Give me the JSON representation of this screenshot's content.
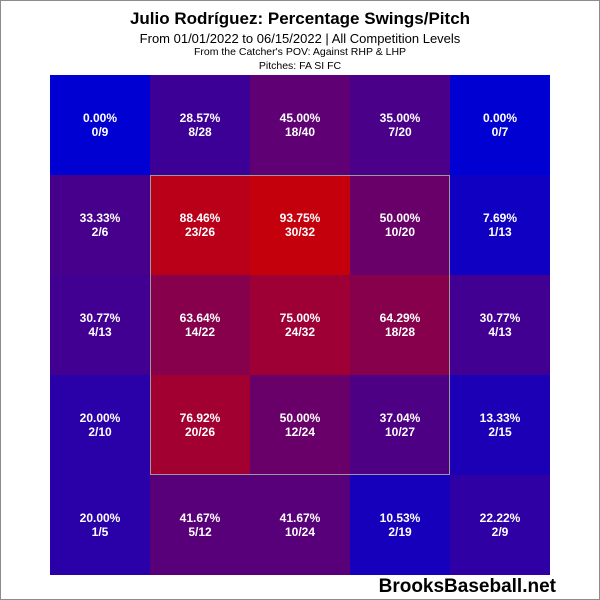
{
  "header": {
    "title": "Julio Rodríguez: Percentage Swings/Pitch",
    "subtitle": "From 01/01/2022 to 06/15/2022 | All Competition Levels",
    "note_pov": "From the Catcher's POV:   Against RHP & LHP",
    "note_pitches": "Pitches:  FA  SI  FC"
  },
  "brand": "BrooksBaseball.net",
  "colors": {
    "low": "#0000d2",
    "high": "#d20000"
  },
  "chart_data": {
    "type": "heatmap",
    "title": "Julio Rodríguez: Percentage Swings/Pitch",
    "rows": 5,
    "cols": 5,
    "cells": [
      [
        {
          "pct": "0.00%",
          "frac": "0/9",
          "value": 0.0
        },
        {
          "pct": "28.57%",
          "frac": "8/28",
          "value": 28.57
        },
        {
          "pct": "45.00%",
          "frac": "18/40",
          "value": 45.0
        },
        {
          "pct": "35.00%",
          "frac": "7/20",
          "value": 35.0
        },
        {
          "pct": "0.00%",
          "frac": "0/7",
          "value": 0.0
        }
      ],
      [
        {
          "pct": "33.33%",
          "frac": "2/6",
          "value": 33.33
        },
        {
          "pct": "88.46%",
          "frac": "23/26",
          "value": 88.46
        },
        {
          "pct": "93.75%",
          "frac": "30/32",
          "value": 93.75
        },
        {
          "pct": "50.00%",
          "frac": "10/20",
          "value": 50.0
        },
        {
          "pct": "7.69%",
          "frac": "1/13",
          "value": 7.69
        }
      ],
      [
        {
          "pct": "30.77%",
          "frac": "4/13",
          "value": 30.77
        },
        {
          "pct": "63.64%",
          "frac": "14/22",
          "value": 63.64
        },
        {
          "pct": "75.00%",
          "frac": "24/32",
          "value": 75.0
        },
        {
          "pct": "64.29%",
          "frac": "18/28",
          "value": 64.29
        },
        {
          "pct": "30.77%",
          "frac": "4/13",
          "value": 30.77
        }
      ],
      [
        {
          "pct": "20.00%",
          "frac": "2/10",
          "value": 20.0
        },
        {
          "pct": "76.92%",
          "frac": "20/26",
          "value": 76.92
        },
        {
          "pct": "50.00%",
          "frac": "12/24",
          "value": 50.0
        },
        {
          "pct": "37.04%",
          "frac": "10/27",
          "value": 37.04
        },
        {
          "pct": "13.33%",
          "frac": "2/15",
          "value": 13.33
        }
      ],
      [
        {
          "pct": "20.00%",
          "frac": "1/5",
          "value": 20.0
        },
        {
          "pct": "41.67%",
          "frac": "5/12",
          "value": 41.67
        },
        {
          "pct": "41.67%",
          "frac": "10/24",
          "value": 41.67
        },
        {
          "pct": "10.53%",
          "frac": "2/19",
          "value": 10.53
        },
        {
          "pct": "22.22%",
          "frac": "2/9",
          "value": 22.22
        }
      ]
    ]
  }
}
